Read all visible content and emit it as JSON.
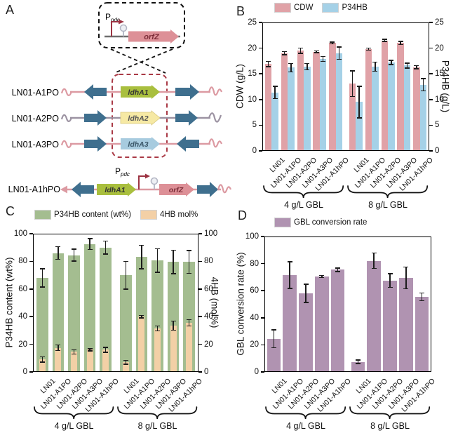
{
  "panel_a": {
    "label": "A",
    "inset": {
      "promoter_p": "P",
      "promoter_sub": "pdc",
      "gene": "orfZ"
    },
    "strains": [
      {
        "name": "LN01-A1PO",
        "gene": "ldhA1"
      },
      {
        "name": "LN01-A2PO",
        "gene": "ldhA2"
      },
      {
        "name": "LN01-A3PO",
        "gene": "ldhA3"
      }
    ],
    "fusion_strain": {
      "name": "LN01-A1hPO",
      "gene_left": "ldhA1",
      "promoter_p": "P",
      "promoter_sub": "pdc",
      "gene_right": "orfZ"
    },
    "colors": {
      "ldhA1": "#a9bf3e",
      "ldhA2": "#f6e9a4",
      "ldhA3": "#a7cbdf",
      "orfZ": "#dd9097",
      "backbone_arrow": "#3f6f8e",
      "promoter": "#9c3342",
      "line_pink": "#dc9aa2",
      "line_mauve": "#9c93a2"
    }
  },
  "chart_data": [
    {
      "panel": "B",
      "type": "bar",
      "categories": [
        "LN01",
        "LN01-A1PO",
        "LN01-A2PO",
        "LN01-A3PO",
        "LN01-A1hPO",
        "LN01",
        "LN01-A1PO",
        "LN01-A2PO",
        "LN01-A3PO",
        "LN01-A1hPO"
      ],
      "groups": [
        {
          "label": "4 g/L GBL"
        },
        {
          "label": "8 g/L GBL"
        }
      ],
      "series": [
        {
          "name": "CDW",
          "color": "#e0a2a7",
          "values": [
            16.9,
            19.0,
            19.5,
            19.3,
            21.0,
            13.1,
            19.8,
            21.5,
            21.0,
            16.3
          ],
          "errors": [
            0.5,
            0.3,
            0.5,
            0.2,
            0.2,
            2.5,
            0.2,
            0.2,
            0.3,
            0.3
          ]
        },
        {
          "name": "P34HB",
          "color": "#a5d1e7",
          "values": [
            11.4,
            16.2,
            16.4,
            17.9,
            19.0,
            9.5,
            16.4,
            17.2,
            16.6,
            12.9
          ],
          "errors": [
            1.2,
            0.8,
            0.6,
            0.5,
            1.2,
            3.1,
            0.9,
            0.4,
            0.5,
            1.2
          ]
        }
      ],
      "ylabel_left": "CDW (g/L)",
      "ylabel_right": "P34HB (g/L)",
      "ylim": [
        0,
        25
      ],
      "yticks": [
        0,
        5,
        10,
        15,
        20,
        25
      ],
      "grid": false,
      "legend_position": "top"
    },
    {
      "panel": "C",
      "type": "bar",
      "categories": [
        "LN01",
        "LN01-A1PO",
        "LN01-A2PO",
        "LN01-A3PO",
        "LN01-A1hPO",
        "LN01",
        "LN01-A1PO",
        "LN01-A2PO",
        "LN01-A3PO",
        "LN01-A1hPO"
      ],
      "groups": [
        {
          "label": "4 g/L GBL"
        },
        {
          "label": "8 g/L GBL"
        }
      ],
      "series": [
        {
          "name": "P34HB content (wt%)",
          "color": "#a4bd90",
          "values": [
            68,
            86,
            84.5,
            92.5,
            90,
            70,
            83,
            80.5,
            79.5,
            79.5
          ],
          "errors": [
            6.7,
            4.5,
            4.3,
            4.0,
            4.7,
            10,
            8.5,
            8.5,
            8.5,
            8.3
          ]
        },
        {
          "name": "4HB mol%",
          "color": "#f3d0a6",
          "values": [
            9,
            17.5,
            14.5,
            16,
            16,
            7,
            40,
            31.5,
            33.5,
            35.5
          ],
          "errors": [
            2,
            2,
            1.5,
            0.7,
            1.7,
            1.3,
            0.8,
            1.7,
            3.3,
            2.3
          ]
        }
      ],
      "ylabel_left": "P34HB content (wt%)",
      "ylabel_right": "4HB (mol%)",
      "ylim": [
        0,
        100
      ],
      "yticks": [
        0,
        20,
        40,
        60,
        80,
        100
      ],
      "grid": false,
      "legend_position": "top"
    },
    {
      "panel": "D",
      "type": "bar",
      "categories": [
        "LN01",
        "LN01-A1PO",
        "LN01-A2PO",
        "LN01-A3PO",
        "LN01-A1hPO",
        "LN01",
        "LN01-A1PO",
        "LN01-A2PO",
        "LN01-A3PO",
        "LN01-A1hPO"
      ],
      "groups": [
        {
          "label": "4 g/L GBL"
        },
        {
          "label": "8 g/L GBL"
        }
      ],
      "series": [
        {
          "name": "GBL conversion rate",
          "color": "#b093b1",
          "values": [
            24.5,
            71.5,
            58,
            70.5,
            75.5,
            7.5,
            82,
            67.5,
            69.5,
            55.5
          ],
          "errors": [
            6.5,
            9.8,
            6.7,
            0.7,
            1.3,
            1.3,
            5.7,
            5.0,
            8.0,
            2.8
          ]
        }
      ],
      "ylabel_left": "GBL conversion rate (%)",
      "ylim": [
        0,
        100
      ],
      "yticks": [
        0,
        20,
        40,
        60,
        80,
        100
      ],
      "grid": false,
      "legend_position": "top"
    }
  ]
}
